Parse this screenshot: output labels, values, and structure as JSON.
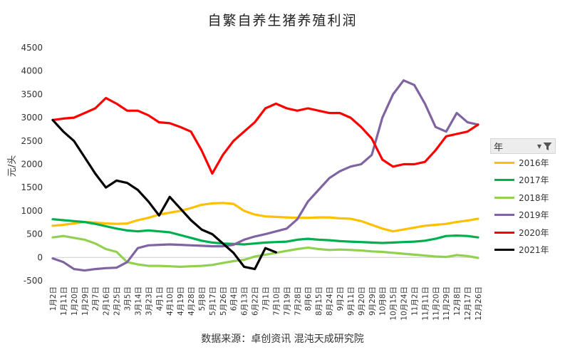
{
  "chart_data": {
    "type": "line",
    "title": "自繁自养生猪养殖利润",
    "ylabel": "元/头",
    "source": "数据来源：卓创资讯  混沌天成研究院",
    "ylim": [
      -500,
      4500
    ],
    "yticks": [
      "4500",
      "4000",
      "3500",
      "3000",
      "2500",
      "2000",
      "1500",
      "1000",
      "500",
      "0",
      "-500"
    ],
    "x_categories": [
      "1月2日",
      "1月11日",
      "1月20日",
      "1月29日",
      "2月7日",
      "2月16日",
      "2月25日",
      "3月5日",
      "3月14日",
      "3月23日",
      "4月1日",
      "4月10日",
      "4月19日",
      "4月28日",
      "5月8日",
      "5月17日",
      "5月26日",
      "6月4日",
      "6月13日",
      "6月22日",
      "7月1日",
      "7月10日",
      "7月19日",
      "7月28日",
      "8月6日",
      "8月15日",
      "8月24日",
      "9月2日",
      "9月11日",
      "9月20日",
      "9月29日",
      "10月8日",
      "10月15日",
      "10月24日",
      "11月2日",
      "11月11日",
      "11月20日",
      "11月29日",
      "12月8日",
      "12月17日",
      "12月26日"
    ],
    "legend_title": "年",
    "series": [
      {
        "name": "2016年",
        "color": "#FFC000",
        "values": [
          680,
          700,
          730,
          760,
          750,
          730,
          720,
          730,
          800,
          850,
          920,
          960,
          1000,
          1060,
          1130,
          1160,
          1170,
          1150,
          1000,
          920,
          880,
          870,
          860,
          850,
          850,
          860,
          860,
          840,
          830,
          780,
          700,
          620,
          560,
          600,
          640,
          680,
          700,
          720,
          760,
          790,
          830
        ]
      },
      {
        "name": "2017年",
        "color": "#00B050",
        "values": [
          820,
          800,
          780,
          760,
          720,
          670,
          620,
          580,
          560,
          580,
          560,
          540,
          480,
          420,
          360,
          320,
          300,
          290,
          280,
          300,
          320,
          330,
          340,
          380,
          400,
          380,
          370,
          350,
          340,
          330,
          320,
          310,
          320,
          330,
          340,
          360,
          400,
          460,
          470,
          460,
          430
        ]
      },
      {
        "name": "2018年",
        "color": "#92D050",
        "values": [
          430,
          460,
          420,
          380,
          300,
          180,
          120,
          -100,
          -150,
          -180,
          -180,
          -190,
          -200,
          -190,
          -180,
          -160,
          -120,
          -80,
          -50,
          20,
          60,
          100,
          140,
          180,
          210,
          180,
          160,
          170,
          160,
          150,
          130,
          120,
          100,
          80,
          60,
          40,
          20,
          10,
          50,
          30,
          -10
        ]
      },
      {
        "name": "2019年",
        "color": "#8064A2",
        "values": [
          -20,
          -100,
          -250,
          -280,
          -250,
          -230,
          -220,
          -100,
          200,
          260,
          270,
          280,
          270,
          260,
          250,
          240,
          240,
          270,
          380,
          450,
          500,
          560,
          620,
          820,
          1200,
          1450,
          1700,
          1850,
          1950,
          2000,
          2200,
          3000,
          3500,
          3800,
          3700,
          3300,
          2800,
          2700,
          3100,
          2900,
          2850
        ]
      },
      {
        "name": "2020年",
        "color": "#FF0000",
        "values": [
          2950,
          2980,
          3000,
          3100,
          3200,
          3420,
          3300,
          3150,
          3150,
          3050,
          2900,
          2880,
          2800,
          2700,
          2300,
          1800,
          2200,
          2500,
          2700,
          2900,
          3200,
          3300,
          3200,
          3150,
          3200,
          3150,
          3100,
          3100,
          3000,
          2800,
          2550,
          2100,
          1950,
          2000,
          2000,
          2050,
          2300,
          2600,
          2650,
          2700,
          2850
        ]
      },
      {
        "name": "2021年",
        "color": "#000000",
        "values": [
          2950,
          2700,
          2500,
          2150,
          1800,
          1500,
          1650,
          1600,
          1450,
          1200,
          900,
          1300,
          1050,
          800,
          600,
          500,
          300,
          100,
          -200,
          -250,
          200,
          110
        ]
      }
    ]
  }
}
